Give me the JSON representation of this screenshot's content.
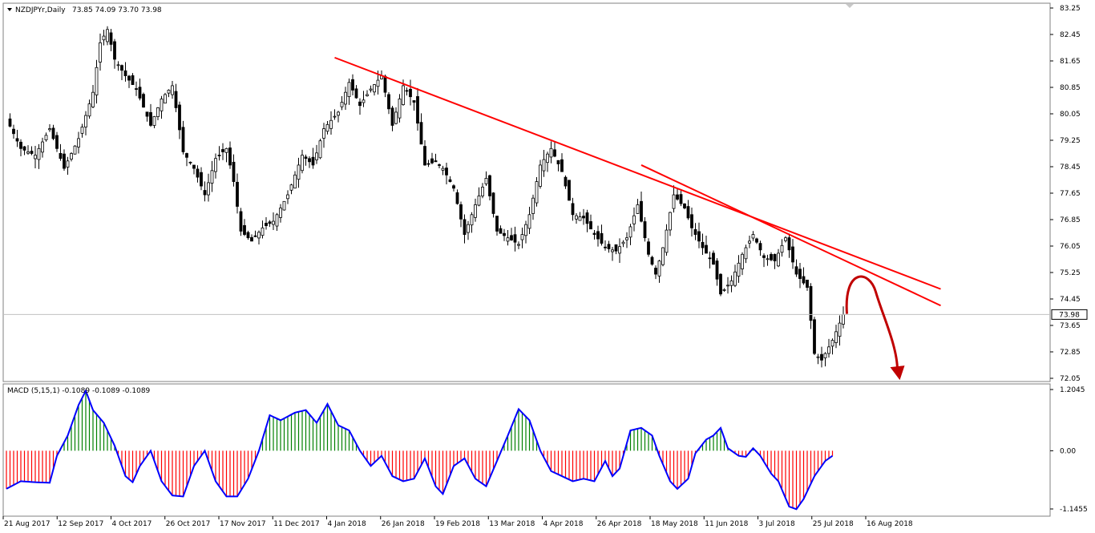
{
  "chart_data": [
    {
      "type": "candlestick",
      "symbol_header": "NZDJPYr,Daily",
      "ohlc_header": "73.85 74.09 73.70 73.98",
      "current_price_label": "73.98",
      "y_ticks": [
        "83.25",
        "82.45",
        "81.65",
        "80.85",
        "80.05",
        "79.25",
        "78.45",
        "77.65",
        "76.85",
        "76.05",
        "75.25",
        "74.45",
        "73.65",
        "72.85",
        "72.05"
      ],
      "ylim": [
        72.05,
        83.25
      ],
      "x_ticks": [
        "21 Aug 2017",
        "12 Sep 2017",
        "4 Oct 2017",
        "26 Oct 2017",
        "17 Nov 2017",
        "11 Dec 2017",
        "4 Jan 2018",
        "26 Jan 2018",
        "19 Feb 2018",
        "13 Mar 2018",
        "4 Apr 2018",
        "26 Apr 2018",
        "18 May 2018",
        "11 Jun 2018",
        "3 Jul 2018",
        "25 Jul 2018",
        "16 Aug 2018"
      ],
      "close_path": [
        [
          0,
          79.9
        ],
        [
          4,
          79.0
        ],
        [
          8,
          78.8
        ],
        [
          12,
          79.6
        ],
        [
          16,
          78.4
        ],
        [
          20,
          79.3
        ],
        [
          24,
          80.7
        ],
        [
          26,
          82.2
        ],
        [
          28,
          82.6
        ],
        [
          30,
          81.7
        ],
        [
          33,
          81.2
        ],
        [
          36,
          80.8
        ],
        [
          40,
          79.7
        ],
        [
          43,
          80.5
        ],
        [
          46,
          80.9
        ],
        [
          49,
          78.9
        ],
        [
          52,
          78.4
        ],
        [
          55,
          77.6
        ],
        [
          58,
          78.7
        ],
        [
          61,
          79.0
        ],
        [
          63,
          78.0
        ],
        [
          65,
          76.5
        ],
        [
          68,
          76.2
        ],
        [
          71,
          76.6
        ],
        [
          74,
          76.8
        ],
        [
          78,
          77.6
        ],
        [
          82,
          78.8
        ],
        [
          85,
          78.5
        ],
        [
          88,
          79.6
        ],
        [
          92,
          80.1
        ],
        [
          95,
          81.0
        ],
        [
          98,
          80.3
        ],
        [
          101,
          80.8
        ],
        [
          104,
          81.2
        ],
        [
          107,
          79.7
        ],
        [
          110,
          80.9
        ],
        [
          113,
          80.4
        ],
        [
          116,
          78.5
        ],
        [
          119,
          78.6
        ],
        [
          121,
          78.4
        ],
        [
          124,
          77.8
        ],
        [
          127,
          76.4
        ],
        [
          130,
          77.3
        ],
        [
          133,
          78.1
        ],
        [
          136,
          76.5
        ],
        [
          139,
          76.3
        ],
        [
          142,
          76.1
        ],
        [
          145,
          77.0
        ],
        [
          148,
          78.5
        ],
        [
          151,
          79.0
        ],
        [
          154,
          78.3
        ],
        [
          157,
          77.0
        ],
        [
          160,
          76.9
        ],
        [
          163,
          76.4
        ],
        [
          166,
          76.0
        ],
        [
          169,
          75.9
        ],
        [
          172,
          76.3
        ],
        [
          175,
          77.3
        ],
        [
          178,
          75.8
        ],
        [
          180,
          75.2
        ],
        [
          182,
          76.0
        ],
        [
          185,
          77.6
        ],
        [
          188,
          77.2
        ],
        [
          190,
          76.6
        ],
        [
          193,
          76.0
        ],
        [
          196,
          75.5
        ],
        [
          198,
          74.6
        ],
        [
          201,
          75.0
        ],
        [
          204,
          75.8
        ],
        [
          207,
          76.4
        ],
        [
          210,
          75.7
        ],
        [
          213,
          75.6
        ],
        [
          216,
          76.3
        ],
        [
          219,
          75.2
        ],
        [
          222,
          74.8
        ],
        [
          224,
          72.8
        ],
        [
          226,
          72.6
        ],
        [
          229,
          73.2
        ],
        [
          232,
          73.98
        ]
      ],
      "trendlines": [
        {
          "from": [
            91,
            81.75
          ],
          "to": [
            259,
            74.75
          ],
          "color": "#ff0000"
        },
        {
          "from": [
            176,
            78.5
          ],
          "to": [
            259,
            74.25
          ],
          "color": "#ff0000"
        }
      ],
      "forecast_arrow": {
        "from": [
          233,
          74.0
        ],
        "peak": [
          237,
          75.15
        ],
        "to": [
          247,
          72.0
        ],
        "color": "#c00000"
      },
      "colors": {
        "up": "#000000",
        "down": "#000000",
        "grid": "#c0c0c0",
        "price_line": "#c0c0c0"
      }
    },
    {
      "type": "bar",
      "indicator_label": "MACD (5,15,1) -0.1089 -0.1089 -0.1089",
      "y_ticks": [
        "1.2045",
        "0.00",
        "-1.1455"
      ],
      "ylim": [
        -1.1455,
        1.2045
      ],
      "macd_path": [
        [
          0,
          -0.75
        ],
        [
          4,
          -0.6
        ],
        [
          8,
          -0.62
        ],
        [
          12,
          -0.63
        ],
        [
          14,
          -0.1
        ],
        [
          17,
          0.3
        ],
        [
          20,
          0.9
        ],
        [
          22,
          1.18
        ],
        [
          24,
          0.8
        ],
        [
          27,
          0.55
        ],
        [
          30,
          0.1
        ],
        [
          33,
          -0.5
        ],
        [
          35,
          -0.62
        ],
        [
          37,
          -0.3
        ],
        [
          40,
          0.0
        ],
        [
          43,
          -0.6
        ],
        [
          46,
          -0.88
        ],
        [
          49,
          -0.9
        ],
        [
          52,
          -0.3
        ],
        [
          55,
          0.0
        ],
        [
          58,
          -0.6
        ],
        [
          61,
          -0.9
        ],
        [
          64,
          -0.9
        ],
        [
          67,
          -0.55
        ],
        [
          70,
          0.0
        ],
        [
          73,
          0.7
        ],
        [
          76,
          0.6
        ],
        [
          80,
          0.75
        ],
        [
          83,
          0.8
        ],
        [
          86,
          0.55
        ],
        [
          89,
          0.92
        ],
        [
          92,
          0.5
        ],
        [
          95,
          0.4
        ],
        [
          98,
          0.0
        ],
        [
          101,
          -0.3
        ],
        [
          104,
          -0.1
        ],
        [
          107,
          -0.5
        ],
        [
          110,
          -0.6
        ],
        [
          113,
          -0.55
        ],
        [
          116,
          -0.15
        ],
        [
          119,
          -0.7
        ],
        [
          121,
          -0.85
        ],
        [
          124,
          -0.3
        ],
        [
          127,
          -0.15
        ],
        [
          130,
          -0.55
        ],
        [
          133,
          -0.7
        ],
        [
          136,
          -0.2
        ],
        [
          139,
          0.3
        ],
        [
          142,
          0.82
        ],
        [
          145,
          0.6
        ],
        [
          148,
          0.0
        ],
        [
          151,
          -0.4
        ],
        [
          154,
          -0.5
        ],
        [
          157,
          -0.6
        ],
        [
          160,
          -0.55
        ],
        [
          163,
          -0.6
        ],
        [
          166,
          -0.2
        ],
        [
          168,
          -0.5
        ],
        [
          170,
          -0.35
        ],
        [
          173,
          0.4
        ],
        [
          176,
          0.45
        ],
        [
          179,
          0.3
        ],
        [
          181,
          -0.1
        ],
        [
          184,
          -0.6
        ],
        [
          186,
          -0.75
        ],
        [
          189,
          -0.55
        ],
        [
          191,
          -0.05
        ],
        [
          194,
          0.22
        ],
        [
          196,
          0.3
        ],
        [
          198,
          0.45
        ],
        [
          200,
          0.05
        ],
        [
          203,
          -0.1
        ],
        [
          205,
          -0.12
        ],
        [
          207,
          0.05
        ],
        [
          209,
          -0.1
        ],
        [
          212,
          -0.45
        ],
        [
          214,
          -0.6
        ],
        [
          217,
          -1.1
        ],
        [
          219,
          -1.15
        ],
        [
          221,
          -0.95
        ],
        [
          224,
          -0.5
        ],
        [
          227,
          -0.2
        ],
        [
          229,
          -0.1
        ]
      ],
      "histogram_colors": {
        "positive": "#008000",
        "negative": "#ff0000",
        "line": "#0000ff"
      }
    }
  ]
}
